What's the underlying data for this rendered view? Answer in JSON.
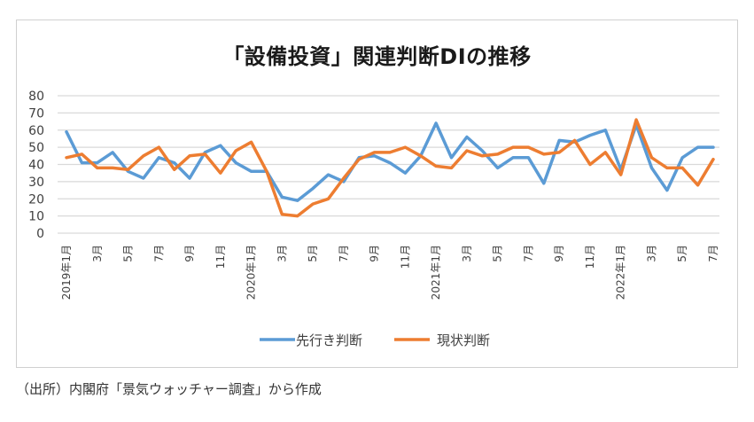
{
  "chart_data": {
    "type": "line",
    "title": "「設備投資」関連判断DIの推移",
    "xlabel": "",
    "ylabel": "",
    "ylim": [
      0,
      80
    ],
    "yticks": [
      0,
      10,
      20,
      30,
      40,
      50,
      60,
      70,
      80
    ],
    "grid": true,
    "legend_position": "bottom",
    "x": [
      "2019年1月",
      "2019年2月",
      "2019年3月",
      "2019年4月",
      "2019年5月",
      "2019年6月",
      "2019年7月",
      "2019年8月",
      "2019年9月",
      "2019年10月",
      "2019年11月",
      "2019年12月",
      "2020年1月",
      "2020年2月",
      "2020年3月",
      "2020年4月",
      "2020年5月",
      "2020年6月",
      "2020年7月",
      "2020年8月",
      "2020年9月",
      "2020年10月",
      "2020年11月",
      "2020年12月",
      "2021年1月",
      "2021年2月",
      "2021年3月",
      "2021年4月",
      "2021年5月",
      "2021年6月",
      "2021年7月",
      "2021年8月",
      "2021年9月",
      "2021年10月",
      "2021年11月",
      "2021年12月",
      "2022年1月",
      "2022年2月",
      "2022年3月",
      "2022年4月",
      "2022年5月",
      "2022年6月",
      "2022年7月"
    ],
    "tick_labels": [
      {
        "index": 0,
        "label": "2019年1月"
      },
      {
        "index": 2,
        "label": "3月"
      },
      {
        "index": 4,
        "label": "5月"
      },
      {
        "index": 6,
        "label": "7月"
      },
      {
        "index": 8,
        "label": "9月"
      },
      {
        "index": 10,
        "label": "11月"
      },
      {
        "index": 12,
        "label": "2020年1月"
      },
      {
        "index": 14,
        "label": "3月"
      },
      {
        "index": 16,
        "label": "5月"
      },
      {
        "index": 18,
        "label": "7月"
      },
      {
        "index": 20,
        "label": "9月"
      },
      {
        "index": 22,
        "label": "11月"
      },
      {
        "index": 24,
        "label": "2021年1月"
      },
      {
        "index": 26,
        "label": "3月"
      },
      {
        "index": 28,
        "label": "5月"
      },
      {
        "index": 30,
        "label": "7月"
      },
      {
        "index": 32,
        "label": "9月"
      },
      {
        "index": 34,
        "label": "11月"
      },
      {
        "index": 36,
        "label": "2022年1月"
      },
      {
        "index": 38,
        "label": "3月"
      },
      {
        "index": 40,
        "label": "5月"
      },
      {
        "index": 42,
        "label": "7月"
      }
    ],
    "series": [
      {
        "name": "先行き判断",
        "color": "#5b9bd5",
        "values": [
          59,
          41,
          41,
          47,
          36,
          32,
          44,
          41,
          32,
          47,
          51,
          41,
          36,
          36,
          21,
          19,
          26,
          34,
          30,
          44,
          45,
          41,
          35,
          45,
          64,
          44,
          56,
          48,
          38,
          44,
          44,
          29,
          54,
          53,
          57,
          60,
          37,
          63,
          38,
          25,
          44,
          50,
          50
        ]
      },
      {
        "name": "現状判断",
        "color": "#ed7d31",
        "values": [
          44,
          46,
          38,
          38,
          37,
          45,
          50,
          37,
          45,
          46,
          35,
          48,
          53,
          36,
          11,
          10,
          17,
          20,
          32,
          43,
          47,
          47,
          50,
          45,
          39,
          38,
          48,
          45,
          46,
          50,
          50,
          46,
          47,
          54,
          40,
          47,
          34,
          66,
          44,
          38,
          38,
          28,
          43
        ]
      }
    ]
  },
  "source_note": "（出所）内閣府「景気ウォッチャー調査」から作成"
}
